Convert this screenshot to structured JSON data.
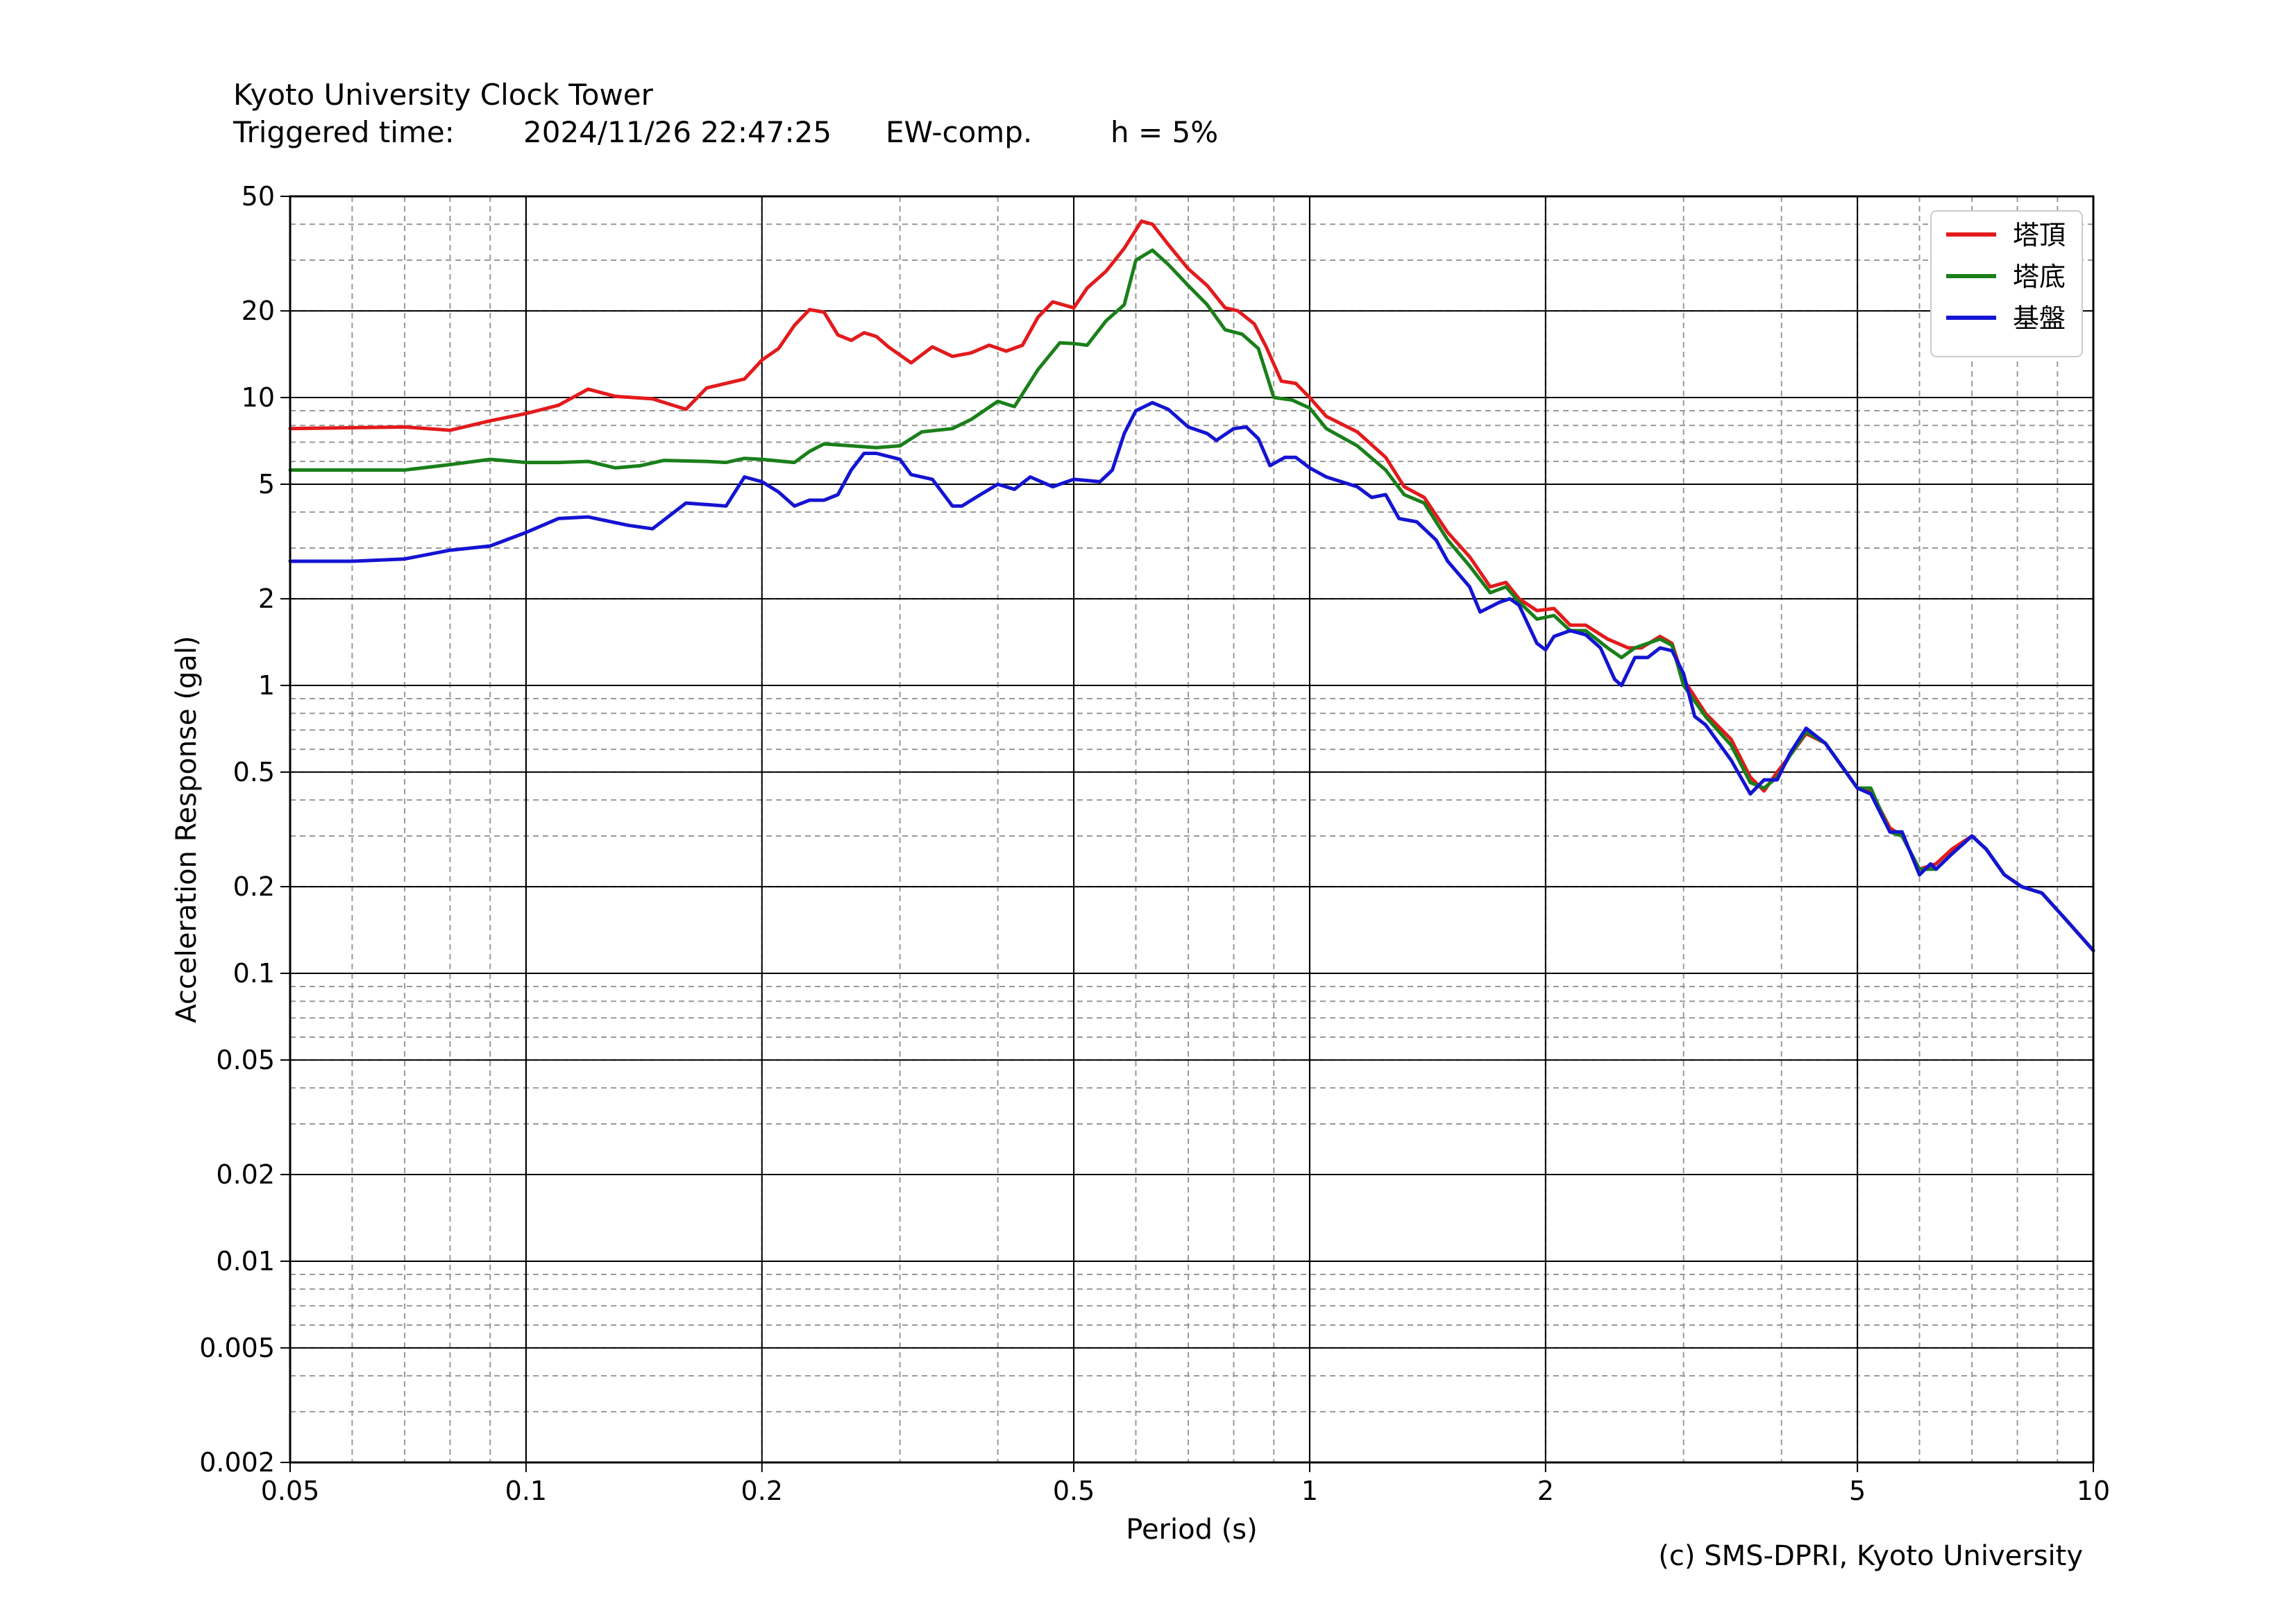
{
  "header": {
    "title": "Kyoto University Clock Tower",
    "triggered_label": "Triggered time:",
    "triggered_value": "2024/11/26 22:47:25",
    "component": "EW-comp.",
    "damping": "h = 5%"
  },
  "credit": "(c) SMS-DPRI, Kyoto University",
  "chart_data": {
    "type": "line",
    "xscale": "log",
    "yscale": "log",
    "xlabel": "Period (s)",
    "ylabel": "Acceleration Response (gal)",
    "xlim": [
      0.05,
      10
    ],
    "ylim": [
      0.002,
      50
    ],
    "xticks": [
      0.05,
      0.1,
      0.2,
      0.5,
      1,
      2,
      5,
      10
    ],
    "xtick_labels": [
      "0.05",
      "0.1",
      "0.2",
      "0.5",
      "1",
      "2",
      "5",
      "10"
    ],
    "yticks": [
      0.002,
      0.005,
      0.01,
      0.02,
      0.05,
      0.1,
      0.2,
      0.5,
      1,
      2,
      5,
      10,
      20,
      50
    ],
    "ytick_labels": [
      "0.002",
      "0.005",
      "0.01",
      "0.02",
      "0.05",
      "0.1",
      "0.2",
      "0.5",
      "1",
      "2",
      "5",
      "10",
      "20",
      "50"
    ],
    "grid": "major solid, minor dashed",
    "legend_position": "top-right",
    "series": [
      {
        "name": "塔頂",
        "color": "#e31a1c",
        "points": [
          [
            0.05,
            7.8
          ],
          [
            0.07,
            7.9
          ],
          [
            0.08,
            7.7
          ],
          [
            0.09,
            8.3
          ],
          [
            0.1,
            8.8
          ],
          [
            0.11,
            9.4
          ],
          [
            0.12,
            10.7
          ],
          [
            0.13,
            10.1
          ],
          [
            0.145,
            9.9
          ],
          [
            0.16,
            9.1
          ],
          [
            0.17,
            10.8
          ],
          [
            0.19,
            11.6
          ],
          [
            0.2,
            13.5
          ],
          [
            0.21,
            14.8
          ],
          [
            0.22,
            17.8
          ],
          [
            0.23,
            20.2
          ],
          [
            0.24,
            19.8
          ],
          [
            0.25,
            16.5
          ],
          [
            0.26,
            15.8
          ],
          [
            0.27,
            16.8
          ],
          [
            0.28,
            16.3
          ],
          [
            0.29,
            15.0
          ],
          [
            0.31,
            13.2
          ],
          [
            0.33,
            15.0
          ],
          [
            0.35,
            13.9
          ],
          [
            0.37,
            14.3
          ],
          [
            0.39,
            15.2
          ],
          [
            0.41,
            14.5
          ],
          [
            0.43,
            15.2
          ],
          [
            0.45,
            19.0
          ],
          [
            0.47,
            21.5
          ],
          [
            0.5,
            20.5
          ],
          [
            0.52,
            24.0
          ],
          [
            0.55,
            27.5
          ],
          [
            0.58,
            33.0
          ],
          [
            0.61,
            41.0
          ],
          [
            0.63,
            40.0
          ],
          [
            0.66,
            34.0
          ],
          [
            0.7,
            28.0
          ],
          [
            0.74,
            24.5
          ],
          [
            0.78,
            20.5
          ],
          [
            0.81,
            20.0
          ],
          [
            0.85,
            18.0
          ],
          [
            0.88,
            15.0
          ],
          [
            0.92,
            11.4
          ],
          [
            0.96,
            11.2
          ],
          [
            1.0,
            10.0
          ],
          [
            1.05,
            8.6
          ],
          [
            1.15,
            7.6
          ],
          [
            1.25,
            6.2
          ],
          [
            1.32,
            4.9
          ],
          [
            1.4,
            4.5
          ],
          [
            1.5,
            3.4
          ],
          [
            1.6,
            2.8
          ],
          [
            1.7,
            2.2
          ],
          [
            1.78,
            2.28
          ],
          [
            1.85,
            2.0
          ],
          [
            1.95,
            1.82
          ],
          [
            2.05,
            1.85
          ],
          [
            2.15,
            1.62
          ],
          [
            2.25,
            1.62
          ],
          [
            2.4,
            1.45
          ],
          [
            2.55,
            1.35
          ],
          [
            2.65,
            1.35
          ],
          [
            2.8,
            1.48
          ],
          [
            2.9,
            1.4
          ],
          [
            3.0,
            1.05
          ],
          [
            3.2,
            0.8
          ],
          [
            3.45,
            0.65
          ],
          [
            3.65,
            0.48
          ],
          [
            3.8,
            0.43
          ],
          [
            3.95,
            0.5
          ],
          [
            4.1,
            0.57
          ],
          [
            4.3,
            0.68
          ],
          [
            4.55,
            0.63
          ],
          [
            5.0,
            0.44
          ],
          [
            5.2,
            0.43
          ],
          [
            5.5,
            0.32
          ],
          [
            5.7,
            0.3
          ],
          [
            6.0,
            0.23
          ],
          [
            6.3,
            0.24
          ],
          [
            6.6,
            0.27
          ],
          [
            7.0,
            0.3
          ],
          [
            7.3,
            0.27
          ],
          [
            7.7,
            0.22
          ],
          [
            8.1,
            0.2
          ],
          [
            8.6,
            0.19
          ],
          [
            9.3,
            0.15
          ],
          [
            10.0,
            0.12
          ]
        ]
      },
      {
        "name": "塔底",
        "color": "#1a7f1a",
        "points": [
          [
            0.05,
            5.6
          ],
          [
            0.07,
            5.6
          ],
          [
            0.08,
            5.85
          ],
          [
            0.09,
            6.1
          ],
          [
            0.1,
            5.95
          ],
          [
            0.11,
            5.95
          ],
          [
            0.12,
            6.0
          ],
          [
            0.13,
            5.7
          ],
          [
            0.14,
            5.8
          ],
          [
            0.15,
            6.05
          ],
          [
            0.17,
            6.0
          ],
          [
            0.18,
            5.95
          ],
          [
            0.19,
            6.15
          ],
          [
            0.2,
            6.1
          ],
          [
            0.22,
            5.95
          ],
          [
            0.23,
            6.5
          ],
          [
            0.24,
            6.9
          ],
          [
            0.26,
            6.8
          ],
          [
            0.28,
            6.7
          ],
          [
            0.3,
            6.8
          ],
          [
            0.32,
            7.6
          ],
          [
            0.35,
            7.8
          ],
          [
            0.37,
            8.4
          ],
          [
            0.4,
            9.7
          ],
          [
            0.42,
            9.3
          ],
          [
            0.45,
            12.5
          ],
          [
            0.48,
            15.5
          ],
          [
            0.5,
            15.4
          ],
          [
            0.52,
            15.2
          ],
          [
            0.55,
            18.5
          ],
          [
            0.58,
            21.0
          ],
          [
            0.6,
            30.0
          ],
          [
            0.63,
            32.5
          ],
          [
            0.66,
            29.0
          ],
          [
            0.7,
            24.5
          ],
          [
            0.74,
            21.0
          ],
          [
            0.78,
            17.2
          ],
          [
            0.82,
            16.6
          ],
          [
            0.86,
            14.8
          ],
          [
            0.9,
            10.0
          ],
          [
            0.95,
            9.8
          ],
          [
            1.0,
            9.2
          ],
          [
            1.05,
            7.8
          ],
          [
            1.15,
            6.8
          ],
          [
            1.25,
            5.6
          ],
          [
            1.32,
            4.6
          ],
          [
            1.4,
            4.3
          ],
          [
            1.5,
            3.2
          ],
          [
            1.6,
            2.6
          ],
          [
            1.7,
            2.1
          ],
          [
            1.78,
            2.2
          ],
          [
            1.85,
            1.95
          ],
          [
            1.95,
            1.7
          ],
          [
            2.05,
            1.75
          ],
          [
            2.15,
            1.55
          ],
          [
            2.25,
            1.55
          ],
          [
            2.4,
            1.35
          ],
          [
            2.5,
            1.25
          ],
          [
            2.6,
            1.35
          ],
          [
            2.8,
            1.45
          ],
          [
            2.9,
            1.38
          ],
          [
            3.0,
            1.0
          ],
          [
            3.2,
            0.78
          ],
          [
            3.45,
            0.62
          ],
          [
            3.65,
            0.46
          ],
          [
            3.8,
            0.44
          ],
          [
            3.95,
            0.48
          ],
          [
            4.1,
            0.57
          ],
          [
            4.3,
            0.69
          ],
          [
            4.55,
            0.63
          ],
          [
            5.0,
            0.44
          ],
          [
            5.2,
            0.44
          ],
          [
            5.5,
            0.31
          ],
          [
            5.7,
            0.3
          ],
          [
            6.0,
            0.23
          ],
          [
            6.3,
            0.23
          ],
          [
            6.6,
            0.26
          ],
          [
            7.0,
            0.3
          ],
          [
            7.3,
            0.27
          ],
          [
            7.7,
            0.22
          ],
          [
            8.1,
            0.2
          ],
          [
            8.6,
            0.19
          ],
          [
            9.3,
            0.15
          ],
          [
            10.0,
            0.12
          ]
        ]
      },
      {
        "name": "基盤",
        "color": "#1414d2",
        "points": [
          [
            0.05,
            2.7
          ],
          [
            0.06,
            2.7
          ],
          [
            0.07,
            2.75
          ],
          [
            0.08,
            2.95
          ],
          [
            0.09,
            3.05
          ],
          [
            0.1,
            3.4
          ],
          [
            0.11,
            3.8
          ],
          [
            0.12,
            3.85
          ],
          [
            0.135,
            3.6
          ],
          [
            0.145,
            3.5
          ],
          [
            0.16,
            4.3
          ],
          [
            0.18,
            4.2
          ],
          [
            0.19,
            5.3
          ],
          [
            0.2,
            5.1
          ],
          [
            0.21,
            4.7
          ],
          [
            0.22,
            4.2
          ],
          [
            0.23,
            4.4
          ],
          [
            0.24,
            4.4
          ],
          [
            0.25,
            4.6
          ],
          [
            0.26,
            5.6
          ],
          [
            0.27,
            6.4
          ],
          [
            0.28,
            6.4
          ],
          [
            0.3,
            6.1
          ],
          [
            0.31,
            5.4
          ],
          [
            0.33,
            5.2
          ],
          [
            0.35,
            4.2
          ],
          [
            0.36,
            4.2
          ],
          [
            0.38,
            4.6
          ],
          [
            0.4,
            5.0
          ],
          [
            0.42,
            4.8
          ],
          [
            0.44,
            5.3
          ],
          [
            0.47,
            4.9
          ],
          [
            0.5,
            5.2
          ],
          [
            0.54,
            5.1
          ],
          [
            0.56,
            5.6
          ],
          [
            0.58,
            7.5
          ],
          [
            0.6,
            9.0
          ],
          [
            0.63,
            9.6
          ],
          [
            0.66,
            9.1
          ],
          [
            0.7,
            7.9
          ],
          [
            0.74,
            7.5
          ],
          [
            0.76,
            7.1
          ],
          [
            0.8,
            7.8
          ],
          [
            0.83,
            7.9
          ],
          [
            0.86,
            7.2
          ],
          [
            0.89,
            5.8
          ],
          [
            0.93,
            6.2
          ],
          [
            0.96,
            6.2
          ],
          [
            1.0,
            5.7
          ],
          [
            1.05,
            5.3
          ],
          [
            1.15,
            4.9
          ],
          [
            1.2,
            4.5
          ],
          [
            1.25,
            4.6
          ],
          [
            1.3,
            3.8
          ],
          [
            1.37,
            3.7
          ],
          [
            1.45,
            3.2
          ],
          [
            1.5,
            2.7
          ],
          [
            1.6,
            2.2
          ],
          [
            1.65,
            1.8
          ],
          [
            1.75,
            1.95
          ],
          [
            1.8,
            2.0
          ],
          [
            1.85,
            1.9
          ],
          [
            1.95,
            1.4
          ],
          [
            2.0,
            1.33
          ],
          [
            2.05,
            1.48
          ],
          [
            2.15,
            1.55
          ],
          [
            2.25,
            1.5
          ],
          [
            2.35,
            1.35
          ],
          [
            2.45,
            1.05
          ],
          [
            2.5,
            1.0
          ],
          [
            2.6,
            1.25
          ],
          [
            2.7,
            1.25
          ],
          [
            2.8,
            1.35
          ],
          [
            2.9,
            1.32
          ],
          [
            3.0,
            1.1
          ],
          [
            3.1,
            0.78
          ],
          [
            3.2,
            0.73
          ],
          [
            3.45,
            0.55
          ],
          [
            3.65,
            0.42
          ],
          [
            3.8,
            0.47
          ],
          [
            3.95,
            0.47
          ],
          [
            4.1,
            0.58
          ],
          [
            4.3,
            0.71
          ],
          [
            4.55,
            0.63
          ],
          [
            5.0,
            0.44
          ],
          [
            5.2,
            0.42
          ],
          [
            5.5,
            0.31
          ],
          [
            5.7,
            0.31
          ],
          [
            6.0,
            0.22
          ],
          [
            6.2,
            0.24
          ],
          [
            6.3,
            0.23
          ],
          [
            6.6,
            0.26
          ],
          [
            7.0,
            0.3
          ],
          [
            7.3,
            0.27
          ],
          [
            7.7,
            0.22
          ],
          [
            8.1,
            0.2
          ],
          [
            8.6,
            0.19
          ],
          [
            9.3,
            0.15
          ],
          [
            10.0,
            0.12
          ]
        ]
      }
    ]
  }
}
